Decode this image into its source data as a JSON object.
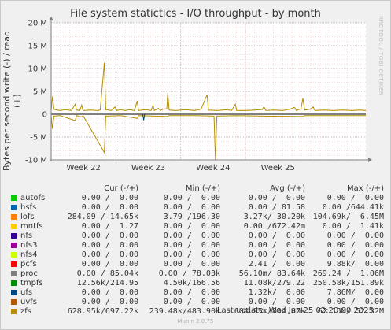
{
  "title": "File system statictics - I/O throughput - by month",
  "watermark": "RRDTOOL / TOBI OETIKER",
  "ylabel": "Bytes per second write (-) / read (+)",
  "version": "Munin 2.0.75",
  "last_update": "Last update: Wed Jun 25 02:20:00 2025",
  "legend_headers": {
    "cur": "Cur (-/+)",
    "min": "Min (-/+)",
    "avg": "Avg (-/+)",
    "max": "Max (-/+)"
  },
  "legend": [
    {
      "name": "autofs",
      "color": "#00cc00",
      "cur": "0.00 /  0.00",
      "min": "0.00 /  0.00",
      "avg": "0.00 /  0.00",
      "max": "0.00 /  0.00"
    },
    {
      "name": "hsfs",
      "color": "#0066b3",
      "cur": "0.00 /  0.00",
      "min": "0.00 /  0.00",
      "avg": "0.00 / 81.58",
      "max": "0.00 /644.41k"
    },
    {
      "name": "lofs",
      "color": "#ff8000",
      "cur": "284.09 / 14.65k",
      "min": "3.79 /196.30",
      "avg": "3.27k/ 30.20k",
      "max": "104.69k/  6.45M"
    },
    {
      "name": "mntfs",
      "color": "#ffcc00",
      "cur": "0.00 /  1.27",
      "min": "0.00 /  0.00",
      "avg": "0.00 /672.42m",
      "max": "0.00 /  1.41k"
    },
    {
      "name": "nfs",
      "color": "#330099",
      "cur": "0.00 /  0.00",
      "min": "0.00 /  0.00",
      "avg": "0.00 /  0.00",
      "max": "0.00 /  0.00"
    },
    {
      "name": "nfs3",
      "color": "#990099",
      "cur": "0.00 /  0.00",
      "min": "0.00 /  0.00",
      "avg": "0.00 /  0.00",
      "max": "0.00 /  0.00"
    },
    {
      "name": "nfs4",
      "color": "#ccff00",
      "cur": "0.00 /  0.00",
      "min": "0.00 /  0.00",
      "avg": "0.00 /  0.00",
      "max": "0.00 /  0.00"
    },
    {
      "name": "pcfs",
      "color": "#ff0000",
      "cur": "0.00 /  0.00",
      "min": "0.00 /  0.00",
      "avg": "2.41 /  0.00",
      "max": "9.88k/  0.00"
    },
    {
      "name": "proc",
      "color": "#808080",
      "cur": "0.00 / 85.04k",
      "min": "0.00 / 78.03k",
      "avg": "56.10m/ 83.64k",
      "max": "269.24 /  1.06M"
    },
    {
      "name": "tmpfs",
      "color": "#008f00",
      "cur": "12.56k/214.95",
      "min": "4.50k/166.56",
      "avg": "11.08k/279.22",
      "max": "250.58k/151.89k"
    },
    {
      "name": "ufs",
      "color": "#00487d",
      "cur": "0.00 /  0.00",
      "min": "0.00 /  0.00",
      "avg": "1.32k/  0.00",
      "max": "7.86M/  0.00"
    },
    {
      "name": "uvfs",
      "color": "#b35a00",
      "cur": "0.00 /  0.00",
      "min": "0.00 /  0.00",
      "avg": "0.00 /  0.00",
      "max": "0.00 /  0.00"
    },
    {
      "name": "zfs",
      "color": "#b38f00",
      "cur": "628.95k/697.22k",
      "min": "239.48k/483.90k",
      "avg": "604.95k/894.87k",
      "max": "67.15M/ 52.32M"
    }
  ],
  "chart_data": {
    "type": "line",
    "title": "File system statictics - I/O throughput - by month",
    "ylabel": "Bytes per second write (-) / read (+)",
    "ylim": [
      -10000000,
      20000000
    ],
    "y_ticks": [
      {
        "value": -10000000,
        "label": "-10 M"
      },
      {
        "value": -5000000,
        "label": "-5 M"
      },
      {
        "value": 0,
        "label": "0"
      },
      {
        "value": 5000000,
        "label": "5 M"
      },
      {
        "value": 10000000,
        "label": "10 M"
      },
      {
        "value": 15000000,
        "label": "15 M"
      },
      {
        "value": 20000000,
        "label": "20 M"
      }
    ],
    "x_range_days": [
      0,
      34
    ],
    "x_ticks": [
      {
        "day": 3.5,
        "label": "Week 22"
      },
      {
        "day": 10.5,
        "label": "Week 23"
      },
      {
        "day": 17.5,
        "label": "Week 24"
      },
      {
        "day": 24.5,
        "label": "Week 25"
      }
    ],
    "x_minor_days": [
      0,
      1,
      2,
      3,
      4,
      5,
      6,
      7,
      8,
      9,
      10,
      11,
      12,
      13,
      14,
      15,
      16,
      17,
      18,
      19,
      20,
      21,
      22,
      23,
      24,
      25,
      26,
      27,
      28,
      29,
      30,
      31,
      32,
      33
    ],
    "grid": true,
    "series": [
      {
        "name": "zfs",
        "color": "#b38f00",
        "read": [
          [
            0.0,
            0.8
          ],
          [
            0.15,
            3.9
          ],
          [
            0.3,
            1.1
          ],
          [
            0.6,
            0.9
          ],
          [
            1.0,
            0.8
          ],
          [
            1.5,
            1.0
          ],
          [
            2.2,
            0.8
          ],
          [
            2.6,
            2.2
          ],
          [
            2.75,
            0.9
          ],
          [
            3.1,
            0.8
          ],
          [
            3.3,
            2.0
          ],
          [
            3.45,
            0.8
          ],
          [
            4.2,
            0.9
          ],
          [
            5.0,
            0.8
          ],
          [
            5.3,
            0.9
          ],
          [
            5.75,
            11.3
          ],
          [
            5.9,
            1.0
          ],
          [
            6.5,
            0.8
          ],
          [
            6.9,
            1.6
          ],
          [
            7.1,
            0.8
          ],
          [
            7.5,
            1.0
          ],
          [
            8.0,
            0.8
          ],
          [
            8.5,
            1.0
          ],
          [
            9.0,
            0.8
          ],
          [
            9.3,
            2.9
          ],
          [
            9.45,
            0.8
          ],
          [
            10.2,
            1.0
          ],
          [
            10.8,
            0.8
          ],
          [
            11.0,
            2.0
          ],
          [
            11.15,
            0.8
          ],
          [
            11.6,
            1.3
          ],
          [
            11.8,
            0.8
          ],
          [
            12.1,
            1.1
          ],
          [
            12.5,
            1.2
          ],
          [
            12.6,
            4.6
          ],
          [
            12.75,
            0.9
          ],
          [
            13.5,
            0.8
          ],
          [
            14.5,
            1.0
          ],
          [
            15.5,
            0.8
          ],
          [
            16.2,
            1.1
          ],
          [
            16.85,
            4.3
          ],
          [
            17.0,
            0.9
          ],
          [
            18.0,
            0.8
          ],
          [
            19.0,
            1.0
          ],
          [
            19.5,
            0.8
          ],
          [
            19.9,
            2.2
          ],
          [
            20.05,
            0.8
          ],
          [
            21.0,
            0.8
          ],
          [
            22.0,
            0.9
          ],
          [
            22.8,
            1.0
          ],
          [
            23.0,
            1.6
          ],
          [
            23.2,
            0.8
          ],
          [
            24.0,
            0.9
          ],
          [
            25.0,
            0.8
          ],
          [
            25.8,
            1.1
          ],
          [
            26.3,
            1.5
          ],
          [
            26.5,
            0.8
          ],
          [
            27.0,
            1.2
          ],
          [
            27.2,
            3.5
          ],
          [
            27.4,
            0.9
          ],
          [
            28.0,
            1.1
          ],
          [
            28.3,
            1.6
          ],
          [
            28.5,
            0.8
          ],
          [
            29.5,
            0.9
          ],
          [
            30.5,
            0.8
          ],
          [
            31.5,
            0.9
          ],
          [
            32.5,
            0.8
          ],
          [
            33.4,
            0.9
          ],
          [
            34.0,
            0.8
          ]
        ],
        "write": [
          [
            0.0,
            -0.3
          ],
          [
            0.15,
            -3.2
          ],
          [
            0.3,
            -0.4
          ],
          [
            1.0,
            -0.3
          ],
          [
            2.6,
            -1.4
          ],
          [
            2.75,
            -0.3
          ],
          [
            3.3,
            -0.6
          ],
          [
            3.45,
            -0.3
          ],
          [
            5.75,
            -8.4
          ],
          [
            5.9,
            -0.4
          ],
          [
            7.5,
            -0.3
          ],
          [
            9.3,
            -0.9
          ],
          [
            9.45,
            -0.3
          ],
          [
            12.6,
            -0.5
          ],
          [
            12.75,
            -0.3
          ],
          [
            15.5,
            -0.3
          ],
          [
            17.6,
            -0.4
          ],
          [
            17.75,
            -10.0
          ],
          [
            17.9,
            -0.4
          ],
          [
            20.0,
            -0.3
          ],
          [
            23.0,
            -0.4
          ],
          [
            27.2,
            -0.5
          ],
          [
            27.4,
            -0.3
          ],
          [
            30.0,
            -0.3
          ],
          [
            34.0,
            -0.3
          ]
        ]
      },
      {
        "name": "ufs",
        "color": "#00487d",
        "read": [],
        "write": [
          [
            9.9,
            -0.1
          ],
          [
            10.0,
            -1.3
          ],
          [
            10.1,
            -0.1
          ]
        ]
      }
    ]
  }
}
